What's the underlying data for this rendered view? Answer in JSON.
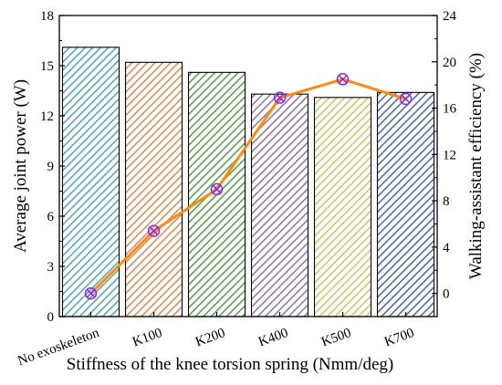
{
  "chart_data": {
    "type": "bar",
    "categories": [
      "No exoskeleton",
      "K100",
      "K200",
      "K400",
      "K500",
      "K700"
    ],
    "xlabel": "Stiffness of the knee torsion spring (Nmm/deg)",
    "ylabel": "Average joint power (W)",
    "y2label": "Walking-assistant efficiency (%)",
    "ylim": [
      0,
      18
    ],
    "y2lim": [
      -2,
      24
    ],
    "yticks": [
      "0",
      "3",
      "6",
      "9",
      "12",
      "15",
      "18"
    ],
    "y2ticks": [
      "0",
      "4",
      "8",
      "12",
      "16",
      "20",
      "24"
    ],
    "bar_values": [
      16.1,
      15.2,
      14.6,
      13.3,
      13.1,
      13.4
    ],
    "bar_colors": [
      "#5aa9b0",
      "#d5905d",
      "#5f9f52",
      "#8f7aa8",
      "#d1c66b",
      "#556d9c"
    ],
    "line_values": [
      0,
      5.4,
      9.0,
      16.9,
      18.5,
      16.8
    ],
    "line_color": "#ff8a10",
    "marker_color": "#8a2be2",
    "grid": false
  }
}
